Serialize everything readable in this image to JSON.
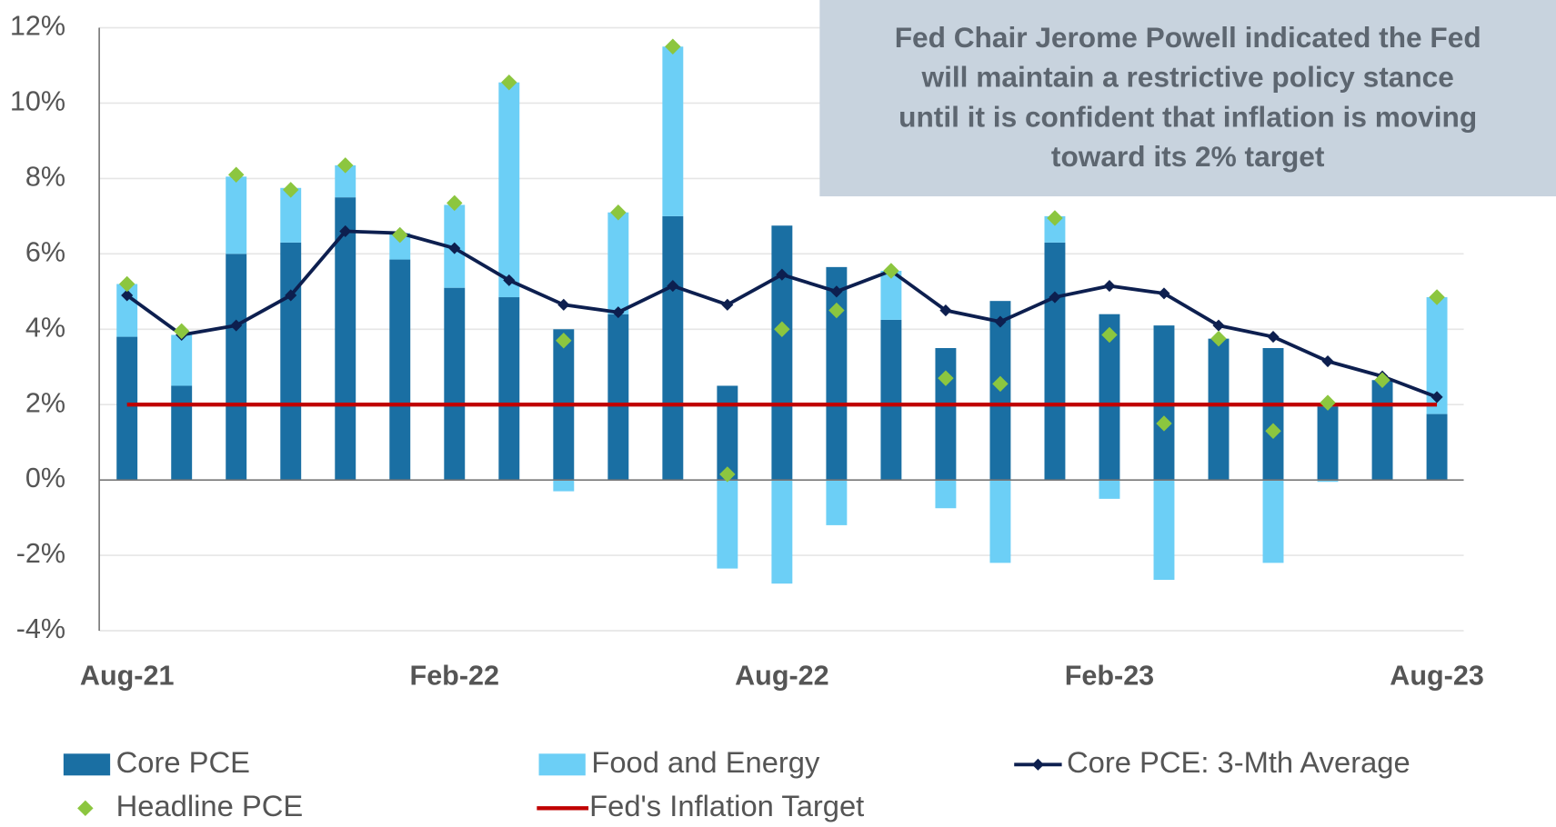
{
  "chart_data": {
    "type": "stacked_bar_line",
    "annotation": [
      "Fed Chair Jerome Powell indicated the Fed",
      "will maintain a restrictive policy stance",
      "until it is confident that inflation is moving",
      "toward its 2% target"
    ],
    "categories": [
      "Aug-21",
      null,
      null,
      null,
      null,
      null,
      "Feb-22",
      null,
      null,
      null,
      null,
      null,
      "Aug-22",
      null,
      null,
      null,
      null,
      null,
      "Feb-23",
      null,
      null,
      null,
      null,
      null,
      "Aug-23"
    ],
    "series": [
      {
        "name": "Core PCE",
        "kind": "bar",
        "color": "#1a6fa3",
        "values": [
          3.8,
          2.5,
          6.0,
          6.3,
          7.5,
          5.85,
          5.1,
          4.85,
          4.0,
          4.4,
          7.0,
          2.5,
          6.75,
          5.65,
          4.25,
          3.5,
          4.75,
          6.3,
          4.4,
          4.1,
          3.75,
          3.5,
          1.95,
          2.65,
          1.75
        ]
      },
      {
        "name": "Food and Energy",
        "kind": "bar",
        "color": "#6ccff6",
        "values": [
          1.4,
          1.35,
          2.05,
          1.45,
          0.85,
          0.7,
          2.2,
          5.7,
          -0.3,
          2.7,
          4.5,
          -2.35,
          -2.75,
          -1.2,
          1.3,
          -0.75,
          -2.2,
          0.7,
          -0.5,
          -2.65,
          0,
          -2.2,
          -0.05,
          0,
          3.1
        ]
      },
      {
        "name": "Core PCE: 3-Mth Average",
        "kind": "line",
        "color": "#0d1f4f",
        "values": [
          4.9,
          3.85,
          4.1,
          4.9,
          6.6,
          6.55,
          6.15,
          5.3,
          4.65,
          4.45,
          5.15,
          4.65,
          5.45,
          5.0,
          5.55,
          4.5,
          4.2,
          4.85,
          5.15,
          4.95,
          4.1,
          3.8,
          3.15,
          2.75,
          2.2
        ]
      },
      {
        "name": "Headline PCE",
        "kind": "marker",
        "color": "#8cc63f",
        "values": [
          5.2,
          3.95,
          8.1,
          7.7,
          8.35,
          6.5,
          7.35,
          10.55,
          3.7,
          7.1,
          11.5,
          0.15,
          4.0,
          4.5,
          5.55,
          2.7,
          2.55,
          6.95,
          3.85,
          1.5,
          3.75,
          1.3,
          2.05,
          2.65,
          4.85
        ]
      },
      {
        "name": "Fed's Inflation Target",
        "kind": "target",
        "color": "#c00000",
        "values": [
          2,
          2,
          2,
          2,
          2,
          2,
          2,
          2,
          2,
          2,
          2,
          2,
          2,
          2,
          2,
          2,
          2,
          2,
          2,
          2,
          2,
          2,
          2,
          2,
          2
        ]
      }
    ],
    "ylim": [
      -4,
      12
    ],
    "yticks": [
      {
        "value": -4,
        "label": "-4%"
      },
      {
        "value": -2,
        "label": "-2%"
      },
      {
        "value": 0,
        "label": "0%"
      },
      {
        "value": 2,
        "label": "2%"
      },
      {
        "value": 4,
        "label": "4%"
      },
      {
        "value": 6,
        "label": "6%"
      },
      {
        "value": 8,
        "label": "8%"
      },
      {
        "value": 10,
        "label": "10%"
      },
      {
        "value": 12,
        "label": "12%"
      }
    ],
    "grid": true
  }
}
